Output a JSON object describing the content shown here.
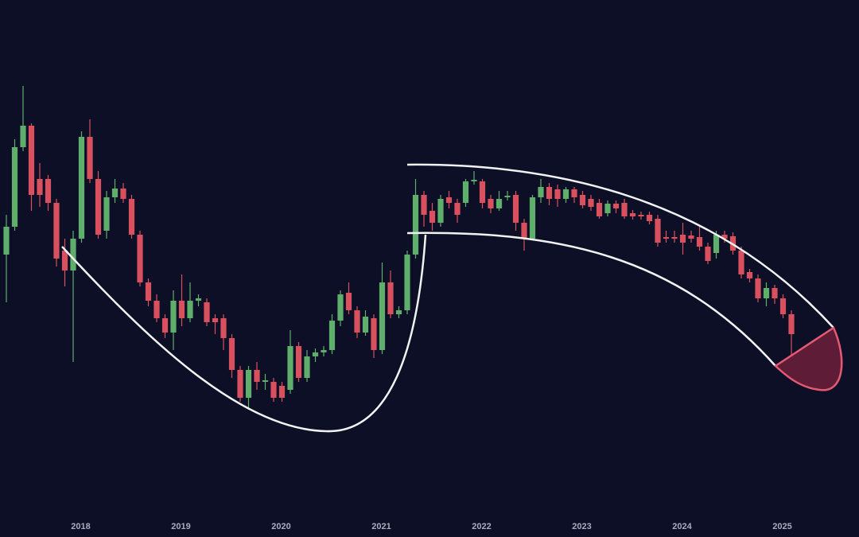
{
  "chart_data": {
    "type": "candlestick",
    "up_color": "#5fae6c",
    "down_color": "#d9505e",
    "ylim": [
      0,
      675
    ],
    "categories": [
      null,
      null,
      null,
      null,
      null,
      null,
      null,
      null,
      null,
      "2018",
      null,
      null,
      null,
      null,
      null,
      null,
      null,
      null,
      null,
      null,
      null,
      "2019",
      null,
      null,
      null,
      null,
      null,
      null,
      null,
      null,
      null,
      null,
      null,
      "2020",
      null,
      null,
      null,
      null,
      null,
      null,
      null,
      null,
      null,
      null,
      null,
      "2021",
      null,
      null,
      null,
      null,
      null,
      null,
      null,
      null,
      null,
      null,
      null,
      "2022",
      null,
      null,
      null,
      null,
      null,
      null,
      null,
      null,
      null,
      null,
      null,
      "2023",
      null,
      null,
      null,
      null,
      null,
      null,
      null,
      null,
      null,
      null,
      null,
      "2024",
      null,
      null,
      null,
      null,
      null,
      null,
      null,
      null,
      null,
      null,
      null,
      "2025",
      null
    ],
    "open": [
      355,
      390,
      490,
      517,
      450,
      450,
      420,
      360,
      335,
      375,
      503,
      450,
      385,
      427,
      438,
      425,
      380,
      320,
      297,
      275,
      257,
      297,
      275,
      297,
      295,
      275,
      275,
      250,
      210,
      175,
      210,
      195,
      195,
      190,
      185,
      240,
      200,
      227,
      232,
      235,
      272,
      307,
      285,
      257,
      275,
      235,
      320,
      280,
      285,
      355,
      430,
      410,
      395,
      427,
      420,
      420,
      447,
      447,
      425,
      413,
      427,
      430,
      395,
      375,
      427,
      440,
      437,
      425,
      437,
      430,
      425,
      420,
      407,
      419,
      420,
      407,
      405,
      405,
      400,
      377,
      377,
      380,
      379,
      377,
      365,
      357,
      380,
      378,
      360,
      333,
      325,
      300,
      313,
      300,
      280
    ],
    "high": [
      405,
      500,
      567,
      520,
      470,
      455,
      425,
      375,
      385,
      510,
      525,
      460,
      435,
      450,
      445,
      430,
      385,
      325,
      305,
      280,
      310,
      330,
      320,
      305,
      300,
      280,
      280,
      255,
      215,
      215,
      220,
      205,
      200,
      195,
      260,
      245,
      235,
      237,
      240,
      280,
      310,
      320,
      290,
      285,
      280,
      345,
      335,
      290,
      360,
      450,
      435,
      420,
      430,
      435,
      425,
      450,
      460,
      450,
      430,
      435,
      435,
      435,
      400,
      430,
      450,
      445,
      443,
      440,
      440,
      435,
      430,
      425,
      423,
      423,
      425,
      411,
      409,
      409,
      405,
      385,
      385,
      395,
      385,
      390,
      370,
      385,
      385,
      383,
      365,
      337,
      330,
      320,
      317,
      305,
      285
    ],
    "low": [
      295,
      385,
      485,
      410,
      415,
      410,
      340,
      315,
      220,
      370,
      445,
      375,
      375,
      420,
      420,
      375,
      315,
      290,
      270,
      250,
      235,
      265,
      270,
      290,
      265,
      255,
      235,
      200,
      170,
      160,
      185,
      185,
      170,
      170,
      180,
      195,
      195,
      220,
      227,
      230,
      265,
      280,
      250,
      253,
      225,
      230,
      275,
      275,
      280,
      350,
      390,
      385,
      390,
      413,
      395,
      415,
      443,
      413,
      407,
      410,
      423,
      385,
      360,
      373,
      420,
      417,
      415,
      420,
      420,
      413,
      410,
      400,
      403,
      407,
      400,
      399,
      399,
      393,
      365,
      370,
      370,
      355,
      370,
      360,
      343,
      350,
      370,
      355,
      325,
      320,
      295,
      290,
      293,
      275,
      227
    ],
    "close": [
      390,
      490,
      517,
      430,
      430,
      420,
      350,
      335,
      375,
      503,
      450,
      380,
      427,
      438,
      425,
      380,
      320,
      297,
      275,
      257,
      297,
      275,
      297,
      300,
      270,
      270,
      250,
      210,
      175,
      210,
      195,
      197,
      175,
      175,
      240,
      200,
      227,
      232,
      235,
      272,
      305,
      285,
      257,
      277,
      235,
      320,
      280,
      285,
      355,
      430,
      405,
      395,
      425,
      420,
      405,
      447,
      449,
      420,
      413,
      425,
      429,
      395,
      375,
      427,
      440,
      425,
      425,
      437,
      427,
      417,
      415,
      403,
      419,
      413,
      403,
      403,
      403,
      397,
      370,
      375,
      375,
      370,
      375,
      365,
      347,
      380,
      375,
      360,
      330,
      325,
      300,
      313,
      300,
      280,
      255
    ]
  }
}
